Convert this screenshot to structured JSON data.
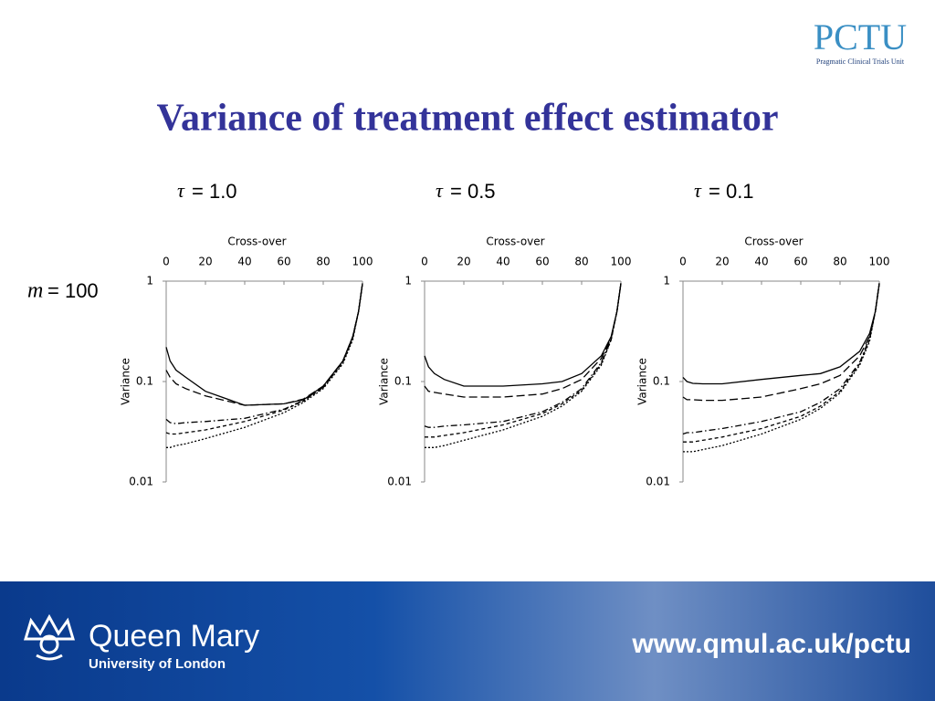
{
  "slide": {
    "title": "Variance of treatment effect estimator",
    "row_label_symbol": "m",
    "row_label": "= 100",
    "logo": {
      "name": "PCTU",
      "subtitle": "Pragmatic Clinical Trials Unit"
    },
    "footer": {
      "institution": "Queen Mary",
      "university": "University of London",
      "url": "www.qmul.ac.uk/pctu"
    }
  },
  "chart_data": [
    {
      "type": "line",
      "title_symbol": "τ",
      "title": "= 1.0",
      "x_label": "Cross-over",
      "y_label": "Variance",
      "x": [
        0,
        2,
        5,
        10,
        20,
        40,
        60,
        70,
        80,
        90,
        95,
        98,
        100
      ],
      "xlim": [
        0,
        100
      ],
      "xticks": [
        0,
        20,
        40,
        60,
        80,
        100
      ],
      "ylim": [
        0.01,
        1
      ],
      "yticks": [
        0.01,
        0.1,
        1
      ],
      "log_y": true,
      "series": [
        {
          "color": "#000000",
          "dash": "solid",
          "values": [
            0.22,
            0.16,
            0.13,
            0.11,
            0.08,
            0.058,
            0.06,
            0.066,
            0.09,
            0.16,
            0.28,
            0.5,
            0.95
          ]
        },
        {
          "color": "#000000",
          "dash": "longdash",
          "values": [
            0.13,
            0.11,
            0.095,
            0.085,
            0.072,
            0.058,
            0.06,
            0.067,
            0.09,
            0.16,
            0.28,
            0.5,
            0.95
          ]
        },
        {
          "color": "#000000",
          "dash": "dashdot",
          "values": [
            0.042,
            0.039,
            0.038,
            0.039,
            0.04,
            0.043,
            0.053,
            0.065,
            0.088,
            0.16,
            0.27,
            0.5,
            0.95
          ]
        },
        {
          "color": "#000000",
          "dash": "dashed",
          "values": [
            0.031,
            0.03,
            0.03,
            0.031,
            0.033,
            0.04,
            0.052,
            0.064,
            0.087,
            0.155,
            0.27,
            0.5,
            0.95
          ]
        },
        {
          "color": "#000000",
          "dash": "dotted",
          "values": [
            0.022,
            0.022,
            0.023,
            0.024,
            0.027,
            0.035,
            0.049,
            0.062,
            0.085,
            0.15,
            0.26,
            0.5,
            0.95
          ]
        }
      ]
    },
    {
      "type": "line",
      "title_symbol": "τ",
      "title": "= 0.5",
      "x_label": "Cross-over",
      "y_label": "Variance",
      "x": [
        0,
        2,
        5,
        10,
        20,
        40,
        60,
        70,
        80,
        90,
        95,
        98,
        100
      ],
      "xlim": [
        0,
        100
      ],
      "xticks": [
        0,
        20,
        40,
        60,
        80,
        100
      ],
      "ylim": [
        0.01,
        1
      ],
      "yticks": [
        0.01,
        0.1,
        1
      ],
      "log_y": true,
      "series": [
        {
          "color": "#000000",
          "dash": "solid",
          "values": [
            0.18,
            0.14,
            0.12,
            0.105,
            0.09,
            0.09,
            0.095,
            0.1,
            0.12,
            0.18,
            0.28,
            0.5,
            0.95
          ]
        },
        {
          "color": "#000000",
          "dash": "longdash",
          "values": [
            0.09,
            0.08,
            0.078,
            0.075,
            0.07,
            0.07,
            0.075,
            0.085,
            0.105,
            0.17,
            0.27,
            0.5,
            0.95
          ]
        },
        {
          "color": "#000000",
          "dash": "dashdot",
          "values": [
            0.036,
            0.035,
            0.035,
            0.036,
            0.037,
            0.04,
            0.05,
            0.062,
            0.085,
            0.155,
            0.27,
            0.5,
            0.95
          ]
        },
        {
          "color": "#000000",
          "dash": "dashed",
          "values": [
            0.028,
            0.028,
            0.028,
            0.029,
            0.031,
            0.037,
            0.048,
            0.06,
            0.082,
            0.15,
            0.26,
            0.5,
            0.95
          ]
        },
        {
          "color": "#000000",
          "dash": "dotted",
          "values": [
            0.022,
            0.022,
            0.022,
            0.023,
            0.026,
            0.033,
            0.045,
            0.057,
            0.08,
            0.145,
            0.26,
            0.5,
            0.95
          ]
        }
      ]
    },
    {
      "type": "line",
      "title_symbol": "τ",
      "title": "= 0.1",
      "x_label": "Cross-over",
      "y_label": "Variance",
      "x": [
        0,
        2,
        5,
        10,
        20,
        40,
        60,
        70,
        80,
        90,
        95,
        98,
        100
      ],
      "xlim": [
        0,
        100
      ],
      "xticks": [
        0,
        20,
        40,
        60,
        80,
        100
      ],
      "ylim": [
        0.01,
        1
      ],
      "yticks": [
        0.01,
        0.1,
        1
      ],
      "log_y": true,
      "series": [
        {
          "color": "#000000",
          "dash": "solid",
          "values": [
            0.11,
            0.1,
            0.096,
            0.095,
            0.095,
            0.105,
            0.115,
            0.12,
            0.14,
            0.2,
            0.3,
            0.5,
            0.95
          ]
        },
        {
          "color": "#000000",
          "dash": "longdash",
          "values": [
            0.07,
            0.066,
            0.066,
            0.065,
            0.065,
            0.07,
            0.085,
            0.095,
            0.115,
            0.18,
            0.28,
            0.5,
            0.95
          ]
        },
        {
          "color": "#000000",
          "dash": "dashdot",
          "values": [
            0.03,
            0.031,
            0.031,
            0.032,
            0.034,
            0.04,
            0.05,
            0.062,
            0.085,
            0.155,
            0.27,
            0.5,
            0.95
          ]
        },
        {
          "color": "#000000",
          "dash": "dashed",
          "values": [
            0.025,
            0.025,
            0.025,
            0.026,
            0.028,
            0.034,
            0.045,
            0.057,
            0.08,
            0.15,
            0.26,
            0.5,
            0.95
          ]
        },
        {
          "color": "#000000",
          "dash": "dotted",
          "values": [
            0.02,
            0.02,
            0.02,
            0.021,
            0.023,
            0.03,
            0.042,
            0.054,
            0.077,
            0.145,
            0.25,
            0.5,
            0.95
          ]
        }
      ]
    }
  ]
}
